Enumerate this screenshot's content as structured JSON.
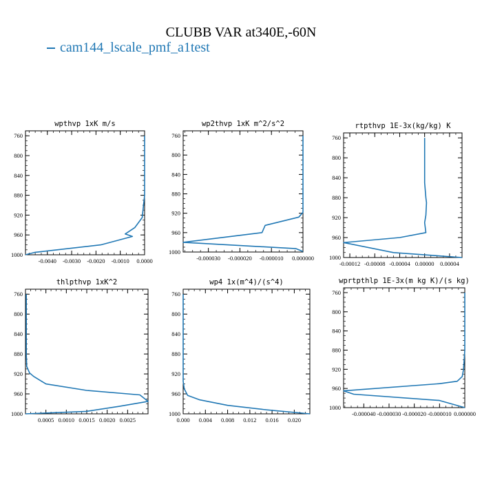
{
  "figure": {
    "title": "CLUBB VAR at340E,-60N",
    "legend_label": "cam144_lscale_pmf_a1test",
    "line_color": "#1f77b4"
  },
  "chart_data": [
    {
      "type": "line",
      "title": "wpthvp   1xK  m/s",
      "xlim": [
        -0.0049,
        0.0
      ],
      "ylim": [
        1000,
        750
      ],
      "xticks": [
        -0.004,
        -0.003,
        -0.002,
        -0.001,
        0.0
      ],
      "xtick_labels": [
        "-0.0040",
        "-0.0030",
        "-0.0020",
        "-0.0010",
        "0.0000"
      ],
      "yticks": [
        760,
        800,
        840,
        880,
        920,
        960,
        1000
      ],
      "series": [
        {
          "x": [
            0.0,
            0.0,
            -0.0001,
            -0.0004,
            -0.0008,
            -0.0005,
            -0.0018,
            -0.0045,
            -0.0049
          ],
          "y": [
            760,
            880,
            925,
            945,
            958,
            963,
            980,
            995,
            1000
          ]
        }
      ]
    },
    {
      "type": "line",
      "title": "wp2thvp   1xK  m^2/s^2",
      "xlim": [
        -3.8e-05,
        0.0
      ],
      "ylim": [
        1000,
        750
      ],
      "xticks": [
        -3e-05,
        -2e-05,
        -1e-05,
        0.0
      ],
      "xtick_labels": [
        "-0.000030",
        "-0.000020",
        "-0.000010",
        "0.000000"
      ],
      "yticks": [
        760,
        800,
        840,
        880,
        920,
        960,
        1000
      ],
      "series": [
        {
          "x": [
            0.0,
            0.0,
            0.0,
            -1.3e-06,
            -1.2e-05,
            -1.3e-05,
            -3.8e-05,
            -2.2e-06,
            0.0
          ],
          "y": [
            760,
            880,
            918,
            928,
            945,
            960,
            980,
            993,
            999
          ]
        }
      ]
    },
    {
      "type": "line",
      "title": "rtpthvp   1E-3x(kg/kg) K",
      "xlim": [
        -0.00013,
        6e-05
      ],
      "ylim": [
        1000,
        750
      ],
      "xticks": [
        -0.00012,
        -8e-05,
        -4e-05,
        0.0,
        4e-05
      ],
      "xtick_labels": [
        "-0.00012",
        "-0.00008",
        "-0.00004",
        "0.00000",
        "0.00004"
      ],
      "yticks": [
        760,
        800,
        840,
        880,
        920,
        960,
        1000
      ],
      "series": [
        {
          "x": [
            0.0,
            0.0,
            0.0,
            2e-06,
            3e-06,
            2e-06,
            0.0,
            2e-06,
            -4e-05,
            -0.00013,
            -5e-05,
            6e-05
          ],
          "y": [
            760,
            800,
            850,
            880,
            890,
            915,
            930,
            950,
            960,
            970,
            990,
            1000
          ]
        }
      ]
    },
    {
      "type": "line",
      "title": "thlpthvp   1xK^2",
      "xlim": [
        0.0,
        0.003
      ],
      "ylim": [
        1000,
        750
      ],
      "xticks": [
        0.0005,
        0.001,
        0.0015,
        0.002,
        0.0025
      ],
      "xtick_labels": [
        "0.0005",
        "0.0010",
        "0.0015",
        "0.0020",
        "0.0025"
      ],
      "yticks": [
        760,
        800,
        840,
        880,
        920,
        960,
        1000
      ],
      "series": [
        {
          "x": [
            2e-05,
            2e-05,
            3e-05,
            0.0001,
            0.0002,
            0.0005,
            0.0015,
            0.0028,
            0.003,
            0.0023,
            0.0015,
            0.0
          ],
          "y": [
            760,
            880,
            905,
            918,
            925,
            940,
            953,
            962,
            975,
            985,
            995,
            1000
          ]
        }
      ]
    },
    {
      "type": "line",
      "title": "wp4   1x(m^4)/(s^4)",
      "xlim": [
        0.0,
        0.0228
      ],
      "ylim": [
        1000,
        750
      ],
      "xticks": [
        0.0,
        0.004,
        0.008,
        0.012,
        0.016,
        0.02
      ],
      "xtick_labels": [
        "0.000",
        "0.004",
        "0.008",
        "0.012",
        "0.016",
        "0.020"
      ],
      "yticks": [
        760,
        800,
        840,
        880,
        920,
        960,
        1000
      ],
      "series": [
        {
          "x": [
            0.0,
            0.0,
            0.0002,
            0.0008,
            0.003,
            0.008,
            0.015,
            0.0228
          ],
          "y": [
            760,
            935,
            950,
            963,
            972,
            983,
            992,
            1000
          ]
        }
      ]
    },
    {
      "type": "line",
      "title": "wprtpthlp   1E-3x(m kg K)/(s kg)",
      "xlim": [
        -4.8e-05,
        0.0
      ],
      "ylim": [
        1000,
        750
      ],
      "xticks": [
        -4e-05,
        -3e-05,
        -2e-05,
        -1e-05,
        0.0
      ],
      "xtick_labels": [
        "-0.000040",
        "-0.000030",
        "-0.000020",
        "-0.000010",
        "0.000000"
      ],
      "yticks": [
        760,
        800,
        840,
        880,
        920,
        960,
        1000
      ],
      "series": [
        {
          "x": [
            0.0,
            0.0,
            -5e-07,
            -1e-06,
            -3e-06,
            -1e-05,
            -4.8e-05,
            -4.4e-05,
            -1e-05,
            0.0
          ],
          "y": [
            760,
            880,
            920,
            935,
            945,
            950,
            965,
            972,
            985,
            1000
          ]
        }
      ]
    }
  ]
}
